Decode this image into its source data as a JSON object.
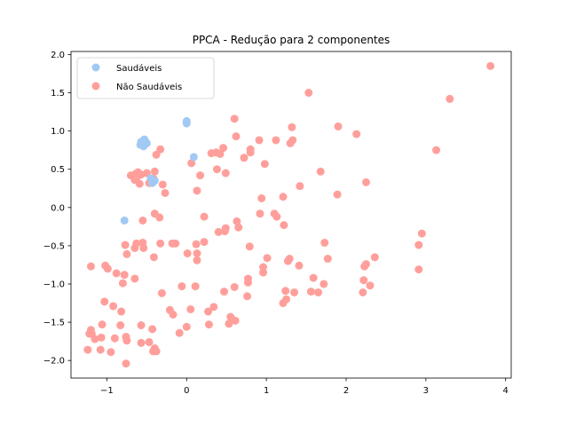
{
  "chart_data": {
    "type": "scatter",
    "title": "PPCA - Redução para 2 componentes",
    "xlabel": "",
    "ylabel": "",
    "xlim": [
      -1.45,
      4.07
    ],
    "ylim": [
      -2.23,
      2.04
    ],
    "xticks": [
      -1,
      0,
      1,
      2,
      3,
      4
    ],
    "xtick_labels": [
      "−1",
      "0",
      "1",
      "2",
      "3",
      "4"
    ],
    "yticks": [
      -2.0,
      -1.5,
      -1.0,
      -0.5,
      0.0,
      0.5,
      1.0,
      1.5,
      2.0
    ],
    "ytick_labels": [
      "−2.0",
      "−1.5",
      "−1.0",
      "−0.5",
      "0.0",
      "0.5",
      "1.0",
      "1.5",
      "2.0"
    ],
    "grid": false,
    "legend_position": "top-left",
    "series": [
      {
        "name": "Saudáveis",
        "color": "#a1c9f4",
        "points": [
          [
            -0.55,
            0.82
          ],
          [
            -0.52,
            0.87
          ],
          [
            -0.57,
            0.86
          ],
          [
            -0.54,
            0.8
          ],
          [
            -0.5,
            0.84
          ],
          [
            -0.58,
            0.82
          ],
          [
            -0.53,
            0.89
          ],
          [
            -0.55,
            0.84
          ],
          [
            0.0,
            1.13
          ],
          [
            0.0,
            1.1
          ],
          [
            0.09,
            0.66
          ],
          [
            -0.78,
            -0.17
          ],
          [
            -0.45,
            0.38
          ],
          [
            -0.4,
            0.35
          ],
          [
            -0.43,
            0.32
          ]
        ]
      },
      {
        "name": "Não Saudáveis",
        "color": "#ff9f9b",
        "points": [
          [
            3.81,
            1.85
          ],
          [
            3.3,
            1.42
          ],
          [
            3.13,
            0.75
          ],
          [
            2.95,
            -0.34
          ],
          [
            2.91,
            -0.49
          ],
          [
            2.91,
            -0.81
          ],
          [
            2.36,
            -0.65
          ],
          [
            2.3,
            -1.02
          ],
          [
            2.25,
            -0.74
          ],
          [
            2.23,
            -0.77
          ],
          [
            2.22,
            -0.95
          ],
          [
            2.21,
            -1.11
          ],
          [
            2.25,
            0.33
          ],
          [
            2.13,
            0.96
          ],
          [
            1.9,
            1.06
          ],
          [
            1.89,
            0.17
          ],
          [
            1.77,
            -0.67
          ],
          [
            1.73,
            -0.46
          ],
          [
            1.72,
            -1.0
          ],
          [
            1.68,
            0.47
          ],
          [
            1.65,
            -1.11
          ],
          [
            1.59,
            -0.92
          ],
          [
            1.56,
            -1.1
          ],
          [
            1.53,
            1.5
          ],
          [
            1.42,
            0.28
          ],
          [
            1.41,
            -0.76
          ],
          [
            1.35,
            -1.11
          ],
          [
            1.32,
            1.05
          ],
          [
            1.33,
            0.88
          ],
          [
            1.3,
            0.84
          ],
          [
            1.29,
            -0.67
          ],
          [
            1.27,
            -0.7
          ],
          [
            1.24,
            -1.09
          ],
          [
            1.25,
            -1.2
          ],
          [
            1.21,
            -1.25
          ],
          [
            1.22,
            -0.23
          ],
          [
            1.21,
            0.14
          ],
          [
            1.13,
            -0.12
          ],
          [
            1.1,
            -0.08
          ],
          [
            1.12,
            0.88
          ],
          [
            1.01,
            -0.66
          ],
          [
            0.98,
            0.57
          ],
          [
            0.96,
            -0.78
          ],
          [
            0.96,
            -0.85
          ],
          [
            0.94,
            0.12
          ],
          [
            0.92,
            -0.08
          ],
          [
            0.91,
            0.88
          ],
          [
            0.8,
            0.76
          ],
          [
            0.8,
            0.72
          ],
          [
            0.79,
            -0.51
          ],
          [
            0.77,
            -0.93
          ],
          [
            0.77,
            -0.98
          ],
          [
            0.76,
            -1.16
          ],
          [
            0.72,
            0.65
          ],
          [
            0.65,
            -0.26
          ],
          [
            0.63,
            -0.18
          ],
          [
            0.62,
            0.93
          ],
          [
            0.6,
            1.16
          ],
          [
            0.6,
            -1.04
          ],
          [
            0.61,
            -1.48
          ],
          [
            0.58,
            -1.47
          ],
          [
            0.55,
            -1.43
          ],
          [
            0.53,
            -1.52
          ],
          [
            0.49,
            0.45
          ],
          [
            0.46,
            0.78
          ],
          [
            0.49,
            -0.27
          ],
          [
            0.48,
            -0.31
          ],
          [
            0.47,
            -1.1
          ],
          [
            0.42,
            0.7
          ],
          [
            0.37,
            0.72
          ],
          [
            0.38,
            0.5
          ],
          [
            0.4,
            -0.32
          ],
          [
            0.34,
            -1.3
          ],
          [
            0.31,
            0.71
          ],
          [
            0.27,
            -1.36
          ],
          [
            0.28,
            -1.53
          ],
          [
            0.22,
            -0.12
          ],
          [
            0.22,
            -0.45
          ],
          [
            0.17,
            0.42
          ],
          [
            0.13,
            0.22
          ],
          [
            0.12,
            -0.48
          ],
          [
            0.13,
            -0.6
          ],
          [
            0.13,
            -0.69
          ],
          [
            0.11,
            -1.03
          ],
          [
            0.06,
            0.58
          ],
          [
            0.05,
            -1.33
          ],
          [
            0.01,
            -0.6
          ],
          [
            0.0,
            -1.56
          ],
          [
            -0.06,
            -1.03
          ],
          [
            -0.09,
            -1.64
          ],
          [
            -0.14,
            -0.47
          ],
          [
            -0.18,
            -0.47
          ],
          [
            -0.17,
            -1.4
          ],
          [
            -0.21,
            -1.34
          ],
          [
            -0.27,
            0.19
          ],
          [
            -0.3,
            0.3
          ],
          [
            -0.33,
            0.76
          ],
          [
            -0.34,
            -0.13
          ],
          [
            -0.33,
            -0.47
          ],
          [
            -0.31,
            -1.12
          ],
          [
            -0.38,
            0.69
          ],
          [
            -0.4,
            0.47
          ],
          [
            -0.41,
            0.37
          ],
          [
            -0.4,
            -0.08
          ],
          [
            -0.41,
            -0.65
          ],
          [
            -0.4,
            -1.84
          ],
          [
            -0.38,
            -1.88
          ],
          [
            -0.43,
            -1.59
          ],
          [
            -0.42,
            -1.88
          ],
          [
            -0.47,
            0.32
          ],
          [
            -0.5,
            0.45
          ],
          [
            -0.47,
            -1.76
          ],
          [
            -0.55,
            -0.17
          ],
          [
            -0.55,
            -0.46
          ],
          [
            -0.54,
            -0.53
          ],
          [
            -0.57,
            0.43
          ],
          [
            -0.57,
            -1.54
          ],
          [
            -0.57,
            -1.77
          ],
          [
            -0.61,
            0.46
          ],
          [
            -0.59,
            0.31
          ],
          [
            -0.63,
            0.38
          ],
          [
            -0.64,
            0.44
          ],
          [
            -0.65,
            0.36
          ],
          [
            -0.63,
            -0.47
          ],
          [
            -0.65,
            -0.53
          ],
          [
            -0.65,
            -0.93
          ],
          [
            -0.7,
            0.42
          ],
          [
            -0.75,
            -0.61
          ],
          [
            -0.75,
            -1.74
          ],
          [
            -0.77,
            -0.49
          ],
          [
            -0.76,
            -2.04
          ],
          [
            -0.76,
            -1.69
          ],
          [
            -0.78,
            -0.88
          ],
          [
            -0.8,
            -0.99
          ],
          [
            -0.82,
            -1.36
          ],
          [
            -0.83,
            -1.54
          ],
          [
            -0.88,
            -0.86
          ],
          [
            -0.9,
            -1.71
          ],
          [
            -0.92,
            -1.29
          ],
          [
            -0.95,
            -1.89
          ],
          [
            -0.99,
            -0.8
          ],
          [
            -1.02,
            -0.76
          ],
          [
            -1.03,
            -1.23
          ],
          [
            -1.06,
            -1.53
          ],
          [
            -1.08,
            -1.86
          ],
          [
            -1.07,
            -1.7
          ],
          [
            -1.15,
            -1.72
          ],
          [
            -1.19,
            -1.65
          ],
          [
            -1.2,
            -0.77
          ],
          [
            -1.2,
            -1.6
          ],
          [
            -1.22,
            -1.65
          ],
          [
            -1.24,
            -1.86
          ]
        ]
      }
    ]
  }
}
